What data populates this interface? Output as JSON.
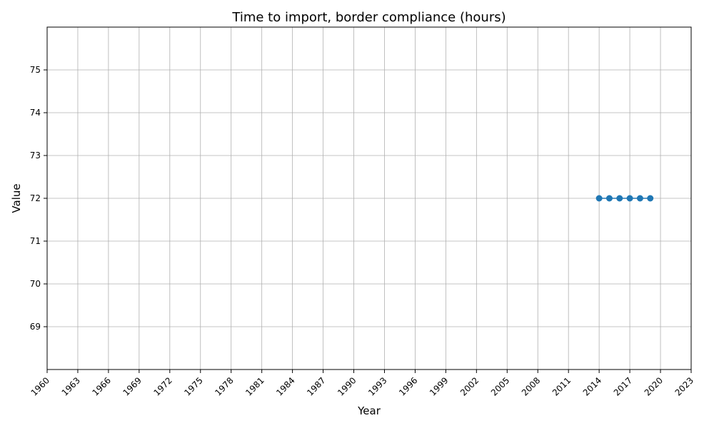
{
  "chart_data": {
    "type": "line",
    "title": "Time to import, border compliance (hours)",
    "xlabel": "Year",
    "ylabel": "Value",
    "xlim": [
      1960,
      2023
    ],
    "ylim": [
      68.0,
      76.0
    ],
    "x_ticks": [
      1960,
      1963,
      1966,
      1969,
      1972,
      1975,
      1978,
      1981,
      1984,
      1987,
      1990,
      1993,
      1996,
      1999,
      2002,
      2005,
      2008,
      2011,
      2014,
      2017,
      2020,
      2023
    ],
    "y_ticks": [
      69,
      70,
      71,
      72,
      73,
      74,
      75
    ],
    "grid": true,
    "series": [
      {
        "color": "#1f77b4",
        "x": [
          2014,
          2015,
          2016,
          2017,
          2018,
          2019
        ],
        "y": [
          72,
          72,
          72,
          72,
          72,
          72
        ]
      }
    ]
  }
}
